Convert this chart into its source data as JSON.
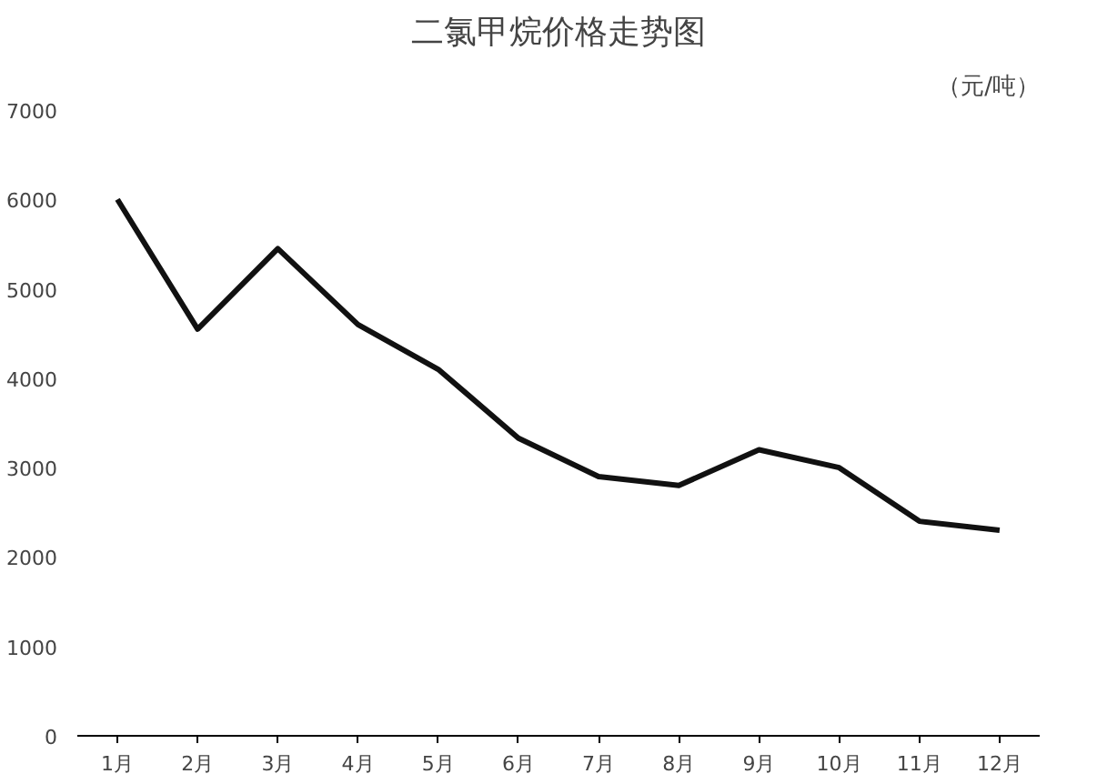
{
  "chart_data": {
    "type": "line",
    "title": "二氯甲烷价格走势图",
    "ylabel": "（元/吨）",
    "categories": [
      "1月",
      "2月",
      "3月",
      "4月",
      "5月",
      "6月",
      "7月",
      "8月",
      "9月",
      "10月",
      "11月",
      "12月"
    ],
    "series": [
      {
        "color": "#111111",
        "values": [
          6000,
          4550,
          5450,
          4600,
          4100,
          3330,
          2900,
          2800,
          3200,
          3000,
          2400,
          2300
        ]
      }
    ],
    "ylim": [
      0,
      7000
    ],
    "yticks": [
      0,
      1000,
      2000,
      3000,
      4000,
      5000,
      6000,
      7000
    ],
    "grid": false,
    "marker": "none",
    "line_style": "solid"
  }
}
